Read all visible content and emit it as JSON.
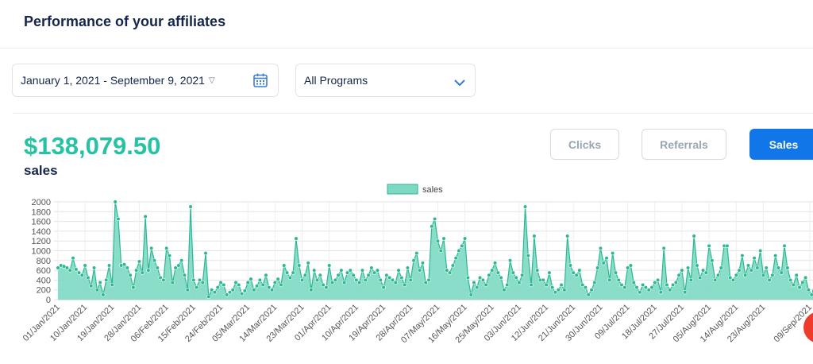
{
  "header": {
    "title": "Performance of your affiliates"
  },
  "filters": {
    "date_range": "January 1, 2021 - September 9, 2021",
    "program": "All Programs",
    "calendar_icon": "calendar-icon",
    "program_chevron_icon": "chevron-down-icon"
  },
  "summary": {
    "total": "$138,079.50",
    "metric_label": "sales"
  },
  "tabs": {
    "clicks": "Clicks",
    "referrals": "Referrals",
    "sales": "Sales",
    "active": "sales"
  },
  "colors": {
    "accent": "#25c3a3",
    "fill": "#7dd9c2",
    "stroke": "#2bb894",
    "primary_button": "#1177e8"
  },
  "chart_data": {
    "type": "area",
    "legend": "sales",
    "ylim": [
      0,
      2000
    ],
    "yticks": [
      0,
      200,
      400,
      600,
      800,
      1000,
      1200,
      1400,
      1600,
      1800,
      2000
    ],
    "xticklabels": [
      "01/Jan/2021",
      "10/Jan/2021",
      "19/Jan/2021",
      "28/Jan/2021",
      "06/Feb/2021",
      "15/Feb/2021",
      "24/Feb/2021",
      "05/Mar/2021",
      "14/Mar/2021",
      "23/Mar/2021",
      "01/Apr/2021",
      "10/Apr/2021",
      "19/Apr/2021",
      "28/Apr/2021",
      "07/May/2021",
      "16/May/2021",
      "25/May/2021",
      "03/Jun/2021",
      "12/Jun/2021",
      "21/Jun/2021",
      "30/Jun/2021",
      "09/Jul/2021",
      "18/Jul/2021",
      "27/Jul/2021",
      "05/Aug/2021",
      "14/Aug/2021",
      "23/Aug/2021",
      "09/Sep/2021"
    ],
    "series": [
      {
        "name": "sales",
        "values": [
          650,
          700,
          680,
          650,
          600,
          850,
          620,
          550,
          500,
          700,
          450,
          280,
          650,
          200,
          350,
          100,
          400,
          700,
          300,
          2000,
          1650,
          700,
          720,
          650,
          500,
          250,
          600,
          780,
          550,
          1700,
          600,
          1050,
          800,
          650,
          450,
          400,
          1050,
          900,
          350,
          650,
          700,
          800,
          500,
          200,
          1900,
          400,
          250,
          400,
          350,
          950,
          60,
          200,
          150,
          250,
          350,
          300,
          100,
          150,
          200,
          350,
          300,
          120,
          180,
          350,
          420,
          200,
          280,
          400,
          300,
          500,
          250,
          200,
          350,
          420,
          300,
          700,
          550,
          450,
          550,
          1250,
          700,
          400,
          500,
          750,
          200,
          600,
          400,
          500,
          300,
          250,
          700,
          350,
          400,
          500,
          600,
          350,
          550,
          600,
          500,
          400,
          350,
          600,
          400,
          500,
          650,
          550,
          600,
          400,
          250,
          500,
          450,
          400,
          350,
          600,
          450,
          300,
          650,
          400,
          800,
          950,
          600,
          750,
          350,
          400,
          1500,
          1650,
          1200,
          1000,
          1250,
          600,
          550,
          700,
          850,
          1000,
          1100,
          1250,
          450,
          100,
          350,
          250,
          450,
          400,
          300,
          500,
          600,
          750,
          550,
          450,
          200,
          300,
          800,
          550,
          450,
          350,
          500,
          1900,
          900,
          300,
          1300,
          600,
          400,
          400,
          300,
          550,
          250,
          150,
          200,
          300,
          200,
          1300,
          700,
          550,
          500,
          600,
          300,
          250,
          100,
          200,
          350,
          650,
          1050,
          750,
          850,
          400,
          950,
          550,
          400,
          300,
          250,
          650,
          700,
          350,
          250,
          150,
          300,
          250,
          200,
          250,
          350,
          400,
          150,
          1050,
          300,
          200,
          300,
          350,
          500,
          600,
          150,
          650,
          400,
          1300,
          700,
          450,
          600,
          550,
          1100,
          800,
          400,
          500,
          650,
          1100,
          1100,
          450,
          400,
          500,
          600,
          900,
          500,
          700,
          600,
          850,
          650,
          1000,
          500,
          650,
          400,
          500,
          900,
          650,
          550,
          1100,
          650,
          400,
          300,
          500,
          250,
          350,
          450,
          200,
          100,
          300
        ]
      }
    ]
  }
}
